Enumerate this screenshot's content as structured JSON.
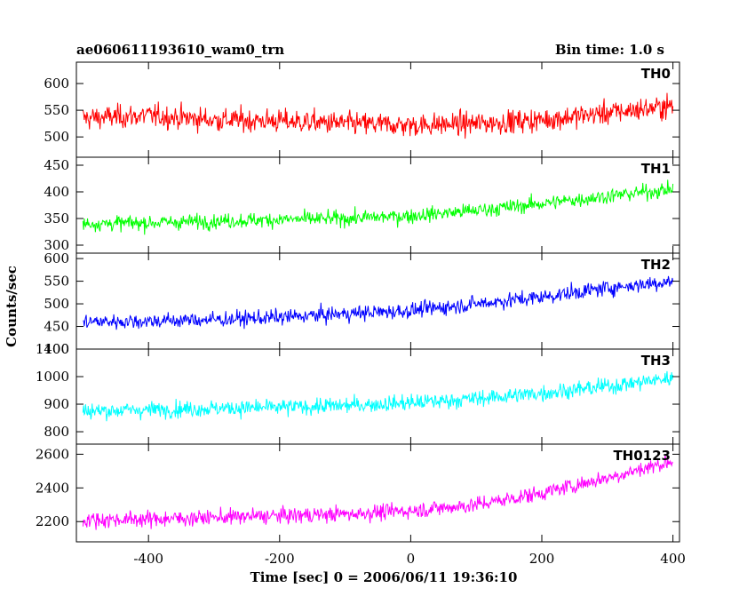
{
  "chart_data": {
    "type": "line",
    "title": "ae060611193610_wam0_trn",
    "bin_time_label": "Bin time: 1.0 s",
    "xlabel": "Time [sec] 0 = 2006/06/11 19:36:10",
    "ylabel": "Counts/sec",
    "xlim": [
      -510,
      410
    ],
    "x_ticks": [
      -400,
      -200,
      0,
      200,
      400
    ],
    "grid": false,
    "series": [
      {
        "name": "TH0",
        "color": "#ff0000",
        "ylim": [
          462,
          640
        ],
        "y_ticks": [
          500,
          550,
          600
        ],
        "x": [
          -500,
          -400,
          -300,
          -200,
          -100,
          0,
          100,
          200,
          300,
          400
        ],
        "values": [
          535,
          540,
          532,
          530,
          525,
          522,
          525,
          532,
          545,
          558
        ],
        "noise": 28
      },
      {
        "name": "TH1",
        "color": "#00ff00",
        "ylim": [
          285,
          465
        ],
        "y_ticks": [
          300,
          350,
          400,
          450
        ],
        "x": [
          -500,
          -400,
          -300,
          -200,
          -100,
          0,
          100,
          200,
          300,
          400
        ],
        "values": [
          340,
          342,
          345,
          348,
          350,
          355,
          365,
          378,
          392,
          405
        ],
        "noise": 18
      },
      {
        "name": "TH2",
        "color": "#0000ff",
        "ylim": [
          400,
          612
        ],
        "y_ticks": [
          400,
          450,
          500,
          550,
          600
        ],
        "x": [
          -500,
          -400,
          -300,
          -200,
          -100,
          0,
          100,
          200,
          300,
          400
        ],
        "values": [
          460,
          462,
          465,
          470,
          478,
          485,
          500,
          515,
          535,
          550
        ],
        "noise": 22
      },
      {
        "name": "TH3",
        "color": "#00ffff",
        "ylim": [
          755,
          1100
        ],
        "y_ticks": [
          800,
          900,
          1000,
          1100
        ],
        "x": [
          -500,
          -400,
          -300,
          -200,
          -100,
          0,
          100,
          200,
          300,
          400
        ],
        "values": [
          875,
          880,
          885,
          888,
          895,
          905,
          920,
          940,
          965,
          995
        ],
        "noise": 38
      },
      {
        "name": "TH0123",
        "color": "#ff00ff",
        "ylim": [
          2080,
          2660
        ],
        "y_ticks": [
          2200,
          2400,
          2600
        ],
        "x": [
          -500,
          -400,
          -300,
          -200,
          -100,
          0,
          100,
          200,
          300,
          400
        ],
        "values": [
          2210,
          2215,
          2225,
          2235,
          2245,
          2265,
          2300,
          2370,
          2460,
          2560
        ],
        "noise": 60
      }
    ]
  }
}
